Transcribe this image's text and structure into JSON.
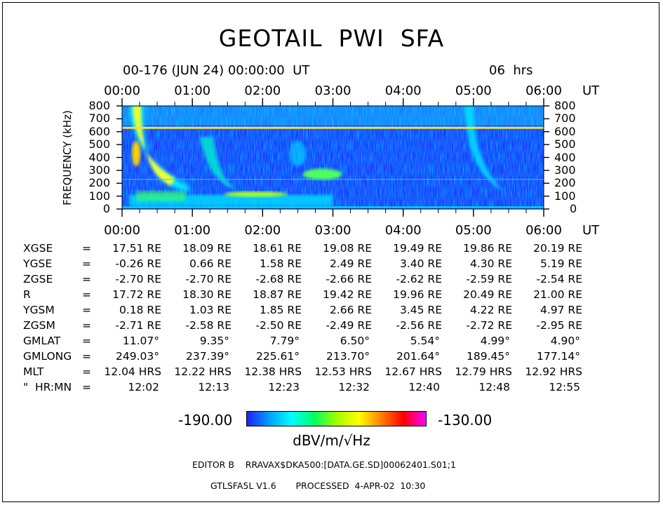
{
  "title": "GEOTAIL  PWI  SFA",
  "header": {
    "date_line": "00-176 (JUN 24) 00:00:00  UT",
    "duration": "06  hrs"
  },
  "chart_data": {
    "type": "heatmap",
    "time_ticks": [
      "00:00",
      "01:00",
      "02:00",
      "03:00",
      "04:00",
      "05:00",
      "06:00"
    ],
    "time_unit": "UT",
    "ylabel": "FREQUENCY (kHz)",
    "y_ticks": [
      0,
      100,
      200,
      300,
      400,
      500,
      600,
      700,
      800
    ],
    "ylim": [
      0,
      800
    ],
    "xlim_hours": [
      0,
      6
    ],
    "colorbar": {
      "min": "-190.00",
      "max": "-130.00",
      "unit": "dBV/m/√Hz",
      "stops": [
        "#2020ff",
        "#00a0ff",
        "#00ffff",
        "#00ff60",
        "#a0ff00",
        "#ffff00",
        "#ff8000",
        "#ff0000",
        "#ff00ff"
      ]
    },
    "features": [
      {
        "name": "intense band",
        "t_start_h": 0.1,
        "t_end_h": 1.0,
        "freq_high_khz": 800,
        "freq_low_khz": 130,
        "level": "yellow"
      },
      {
        "name": "band 2",
        "t_start_h": 1.0,
        "t_end_h": 1.6,
        "freq_high_khz": 500,
        "freq_low_khz": 150,
        "level": "cyan-green"
      },
      {
        "name": "band 3",
        "t_start_h": 2.5,
        "t_end_h": 3.2,
        "freq_high_khz": 320,
        "freq_low_khz": 200,
        "level": "green"
      },
      {
        "name": "band 4",
        "t_start_h": 4.85,
        "t_end_h": 5.35,
        "freq_high_khz": 800,
        "freq_low_khz": 150,
        "level": "cyan"
      },
      {
        "name": "line 630 kHz",
        "freq_khz": 630,
        "level": "yellow"
      },
      {
        "name": "low freq continuum",
        "freq_high_khz": 100,
        "freq_low_khz": 20,
        "level": "cyan-green"
      }
    ]
  },
  "ephemeris": {
    "rows": [
      {
        "label": "XGSE",
        "values": [
          "17.51 RE",
          "18.09 RE",
          "18.61 RE",
          "19.08 RE",
          "19.49 RE",
          "19.86 RE",
          "20.19 RE"
        ]
      },
      {
        "label": "YGSE",
        "values": [
          "-0.26 RE",
          "0.66 RE",
          "1.58 RE",
          "2.49 RE",
          "3.40 RE",
          "4.30 RE",
          "5.19 RE"
        ]
      },
      {
        "label": "ZGSE",
        "values": [
          "-2.70 RE",
          "-2.70 RE",
          "-2.68 RE",
          "-2.66 RE",
          "-2.62 RE",
          "-2.59 RE",
          "-2.54 RE"
        ]
      },
      {
        "label": "R",
        "values": [
          "17.72 RE",
          "18.30 RE",
          "18.87 RE",
          "19.42 RE",
          "19.96 RE",
          "20.49 RE",
          "21.00 RE"
        ]
      },
      {
        "label": "YGSM",
        "values": [
          "0.18 RE",
          "1.03 RE",
          "1.85 RE",
          "2.66 RE",
          "3.45 RE",
          "4.22 RE",
          "4.97 RE"
        ]
      },
      {
        "label": "ZGSM",
        "values": [
          "-2.71 RE",
          "-2.58 RE",
          "-2.50 RE",
          "-2.49 RE",
          "-2.56 RE",
          "-2.72 RE",
          "-2.95 RE"
        ]
      },
      {
        "label": "GMLAT",
        "values": [
          "11.07°",
          "9.35°",
          "7.79°",
          "6.50°",
          "5.54°",
          "4.99°",
          "4.90°"
        ]
      },
      {
        "label": "GMLONG",
        "values": [
          "249.03°",
          "237.39°",
          "225.61°",
          "213.70°",
          "201.64°",
          "189.45°",
          "177.14°"
        ]
      },
      {
        "label": "MLT",
        "values": [
          "12.04 HRS",
          "12.22 HRS",
          "12.38 HRS",
          "12.53 HRS",
          "12.67 HRS",
          "12.79 HRS",
          "12.92 HRS"
        ]
      },
      {
        "label": "\"  HR:MN",
        "values": [
          "12:02",
          "12:13",
          "12:23",
          "12:32",
          "12:40",
          "12:48",
          "12:55"
        ]
      }
    ],
    "equals": "="
  },
  "footer": {
    "editor": "EDITOR B    RRAVAX$DKA500:[DATA.GE.SD]00062401.S01;1",
    "processed": "GTLSFA5L V1.6       PROCESSED  4-APR-02  10:30"
  }
}
